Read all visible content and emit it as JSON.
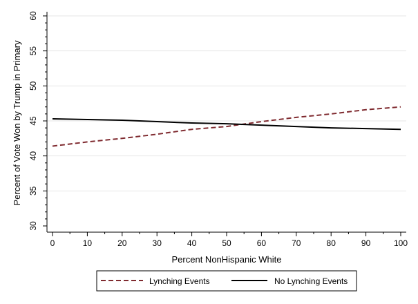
{
  "chart_data": {
    "type": "line",
    "title": "",
    "xlabel": "Percent NonHispanic White",
    "ylabel": "Percent of Vote Won by Trump in Primary",
    "xlim": [
      0,
      100
    ],
    "ylim": [
      30,
      60
    ],
    "x_ticks_major": [
      0,
      10,
      20,
      30,
      40,
      50,
      60,
      70,
      80,
      90,
      100
    ],
    "x_ticks_minor": [
      5,
      15,
      25,
      35,
      45,
      55,
      65,
      75,
      85,
      95
    ],
    "y_ticks_major": [
      30,
      35,
      40,
      45,
      50,
      55,
      60
    ],
    "y_ticks_minor": [
      31,
      32,
      33,
      34,
      36,
      37,
      38,
      39,
      41,
      42,
      43,
      44,
      46,
      47,
      48,
      49,
      51,
      52,
      53,
      54,
      56,
      57,
      58,
      59
    ],
    "grid": "horizontal",
    "legend_position": "bottom",
    "x": [
      0,
      10,
      20,
      30,
      40,
      50,
      60,
      70,
      80,
      90,
      100
    ],
    "series": [
      {
        "name": "Lynching Events",
        "color": "#7f2a2f",
        "style": "dashed",
        "values": [
          41.4,
          42.0,
          42.5,
          43.1,
          43.8,
          44.2,
          44.9,
          45.5,
          46.0,
          46.6,
          47.0
        ]
      },
      {
        "name": "No Lynching Events",
        "color": "#000000",
        "style": "solid",
        "values": [
          45.3,
          45.2,
          45.1,
          44.9,
          44.7,
          44.6,
          44.4,
          44.2,
          44.0,
          43.9,
          43.8
        ]
      }
    ]
  }
}
